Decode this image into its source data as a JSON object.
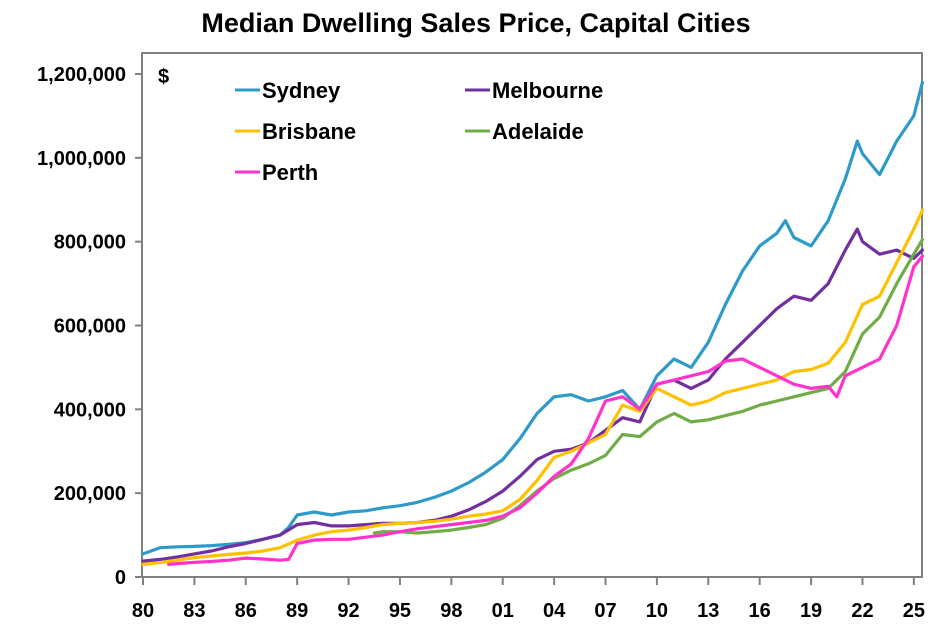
{
  "chart_data": {
    "type": "line",
    "title": "Median Dwelling Sales Price, Capital Cities",
    "xlabel": "",
    "ylabel": "$",
    "xlim": [
      1980,
      2025.6
    ],
    "ylim": [
      0,
      1200000
    ],
    "grid": false,
    "legend_position": "top-left",
    "x_tick_values": [
      1980,
      1983,
      1986,
      1989,
      1992,
      1995,
      1998,
      2001,
      2004,
      2007,
      2010,
      2013,
      2016,
      2019,
      2022,
      2025
    ],
    "x_tick_labels": [
      "80",
      "83",
      "86",
      "89",
      "92",
      "95",
      "98",
      "01",
      "04",
      "07",
      "10",
      "13",
      "16",
      "19",
      "22",
      "25"
    ],
    "y_tick_values": [
      0,
      200000,
      400000,
      600000,
      800000,
      1000000,
      1200000
    ],
    "y_tick_labels": [
      "0",
      "200,000",
      "400,000",
      "600,000",
      "800,000",
      "1,000,000",
      "1,200,000"
    ],
    "series": [
      {
        "name": "Sydney",
        "color": "#2e9ac9",
        "x": [
          1980,
          1981,
          1982,
          1983,
          1984,
          1985,
          1986,
          1987,
          1988,
          1988.5,
          1989,
          1990,
          1991,
          1992,
          1993,
          1994,
          1995,
          1996,
          1997,
          1998,
          1999,
          2000,
          2001,
          2002,
          2003,
          2004,
          2005,
          2006,
          2007,
          2008,
          2009,
          2010,
          2011,
          2012,
          2013,
          2014,
          2015,
          2016,
          2017,
          2017.5,
          2018,
          2019,
          2020,
          2021,
          2021.7,
          2022,
          2023,
          2024,
          2025,
          2025.5
        ],
        "values": [
          55000,
          70000,
          72000,
          73000,
          75000,
          78000,
          82000,
          90000,
          100000,
          118000,
          148000,
          155000,
          148000,
          155000,
          158000,
          165000,
          170000,
          178000,
          190000,
          205000,
          225000,
          250000,
          280000,
          330000,
          390000,
          430000,
          435000,
          420000,
          430000,
          445000,
          400000,
          480000,
          520000,
          500000,
          560000,
          650000,
          730000,
          790000,
          820000,
          850000,
          810000,
          790000,
          850000,
          950000,
          1040000,
          1010000,
          960000,
          1040000,
          1100000,
          1180000
        ]
      },
      {
        "name": "Melbourne",
        "color": "#7030a0",
        "x": [
          1980,
          1981,
          1982,
          1983,
          1984,
          1985,
          1986,
          1987,
          1988,
          1989,
          1990,
          1991,
          1992,
          1993,
          1994,
          1995,
          1996,
          1997,
          1998,
          1999,
          2000,
          2001,
          2002,
          2003,
          2004,
          2005,
          2006,
          2007,
          2008,
          2009,
          2010,
          2011,
          2012,
          2013,
          2014,
          2015,
          2016,
          2017,
          2018,
          2019,
          2020,
          2021,
          2021.7,
          2022,
          2023,
          2024,
          2025,
          2025.5
        ],
        "values": [
          38000,
          42000,
          48000,
          55000,
          62000,
          72000,
          80000,
          90000,
          100000,
          125000,
          130000,
          122000,
          122000,
          125000,
          128000,
          128000,
          130000,
          135000,
          145000,
          160000,
          180000,
          205000,
          240000,
          280000,
          300000,
          305000,
          320000,
          350000,
          380000,
          370000,
          460000,
          470000,
          450000,
          470000,
          520000,
          560000,
          600000,
          640000,
          670000,
          660000,
          700000,
          780000,
          830000,
          800000,
          770000,
          780000,
          760000,
          780000
        ]
      },
      {
        "name": "Brisbane",
        "color": "#ffc000",
        "x": [
          1980,
          1981,
          1982,
          1983,
          1984,
          1985,
          1986,
          1987,
          1988,
          1989,
          1990,
          1991,
          1992,
          1993,
          1994,
          1995,
          1996,
          1997,
          1998,
          1999,
          2000,
          2001,
          2002,
          2003,
          2004,
          2005,
          2006,
          2007,
          2008,
          2009,
          2010,
          2011,
          2012,
          2013,
          2014,
          2015,
          2016,
          2017,
          2018,
          2019,
          2020,
          2021,
          2022,
          2023,
          2024,
          2025,
          2025.5
        ],
        "values": [
          30000,
          34000,
          40000,
          46000,
          50000,
          54000,
          57000,
          62000,
          70000,
          88000,
          100000,
          108000,
          112000,
          118000,
          125000,
          128000,
          130000,
          133000,
          138000,
          145000,
          150000,
          158000,
          185000,
          230000,
          285000,
          300000,
          320000,
          340000,
          410000,
          395000,
          450000,
          430000,
          410000,
          420000,
          440000,
          450000,
          460000,
          470000,
          490000,
          495000,
          510000,
          560000,
          650000,
          670000,
          750000,
          830000,
          875000
        ]
      },
      {
        "name": "Adelaide",
        "color": "#70ad47",
        "x": [
          1993.5,
          1994,
          1995,
          1996,
          1997,
          1998,
          1999,
          2000,
          2001,
          2002,
          2003,
          2004,
          2005,
          2006,
          2007,
          2008,
          2009,
          2010,
          2011,
          2012,
          2013,
          2014,
          2015,
          2016,
          2017,
          2018,
          2019,
          2020,
          2021,
          2022,
          2023,
          2024,
          2025,
          2025.5
        ],
        "values": [
          105000,
          108000,
          108000,
          105000,
          108000,
          112000,
          118000,
          125000,
          140000,
          170000,
          205000,
          235000,
          255000,
          270000,
          290000,
          340000,
          335000,
          370000,
          390000,
          370000,
          375000,
          385000,
          395000,
          410000,
          420000,
          430000,
          440000,
          450000,
          490000,
          580000,
          620000,
          700000,
          770000,
          805000
        ]
      },
      {
        "name": "Perth",
        "color": "#ff33cc",
        "x": [
          1981.5,
          1982,
          1983,
          1984,
          1985,
          1986,
          1987,
          1988,
          1988.5,
          1989,
          1990,
          1991,
          1992,
          1993,
          1994,
          1995,
          1996,
          1997,
          1998,
          1999,
          2000,
          2001,
          2002,
          2003,
          2004,
          2005,
          2006,
          2007,
          2008,
          2009,
          2010,
          2011,
          2012,
          2013,
          2014,
          2015,
          2016,
          2017,
          2018,
          2019,
          2020,
          2020.5,
          2021,
          2022,
          2023,
          2024,
          2025,
          2025.5
        ],
        "values": [
          30000,
          32000,
          35000,
          37000,
          40000,
          45000,
          43000,
          40000,
          42000,
          80000,
          88000,
          90000,
          90000,
          95000,
          100000,
          108000,
          115000,
          120000,
          125000,
          130000,
          135000,
          145000,
          165000,
          200000,
          240000,
          270000,
          330000,
          420000,
          430000,
          400000,
          460000,
          470000,
          480000,
          490000,
          515000,
          520000,
          500000,
          480000,
          460000,
          450000,
          455000,
          430000,
          480000,
          500000,
          520000,
          600000,
          740000,
          765000
        ]
      }
    ]
  }
}
